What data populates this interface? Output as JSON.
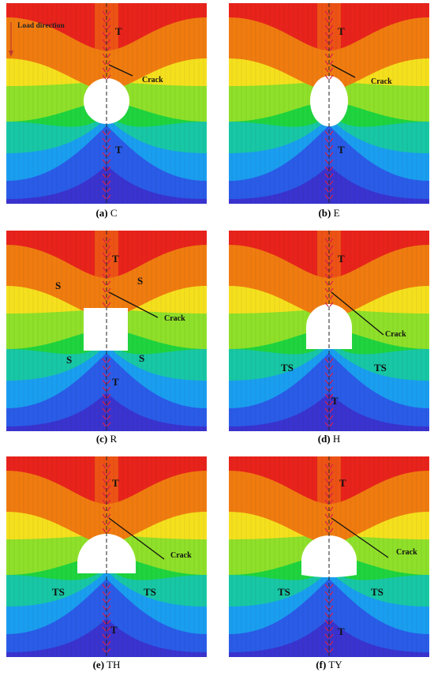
{
  "panels": [
    {
      "id": "a",
      "caption_letter": "(a)",
      "caption_name": "C",
      "opening": "circle",
      "labels": {
        "top": "T",
        "bottom": "T",
        "crack": "Crack",
        "load": "Load direction"
      }
    },
    {
      "id": "b",
      "caption_letter": "(b)",
      "caption_name": "E",
      "opening": "ellipse",
      "labels": {
        "top": "T",
        "bottom": "T",
        "crack": "Crack"
      }
    },
    {
      "id": "c",
      "caption_letter": "(c)",
      "caption_name": "R",
      "opening": "rectangle",
      "labels": {
        "top": "T",
        "bottom": "T",
        "crack": "Crack",
        "s_tl": "S",
        "s_tr": "S",
        "s_bl": "S",
        "s_br": "S"
      }
    },
    {
      "id": "d",
      "caption_letter": "(d)",
      "caption_name": "H",
      "opening": "horseshoe",
      "labels": {
        "top": "T",
        "bottom": "T",
        "crack": "Crack",
        "ts_l": "TS",
        "ts_r": "TS"
      }
    },
    {
      "id": "e",
      "caption_letter": "(e)",
      "caption_name": "TH",
      "opening": "semicircle",
      "labels": {
        "top": "T",
        "bottom": "T",
        "crack": "Crack",
        "ts_l": "TS",
        "ts_r": "TS"
      }
    },
    {
      "id": "f",
      "caption_letter": "(f)",
      "caption_name": "TY",
      "opening": "tunnel",
      "labels": {
        "top": "T",
        "bottom": "T",
        "crack": "Crack",
        "ts_l": "TS",
        "ts_r": "TS"
      }
    }
  ],
  "colors": {
    "band1": "#e8231c",
    "band2": "#f07c10",
    "band3": "#f5e01e",
    "band4": "#8fe02a",
    "band5": "#1fd43e",
    "band6": "#18c7a5",
    "band7": "#1a9ef0",
    "band8": "#2a5ce8",
    "band9": "#3a33cf",
    "crack_mark": "#d8204a"
  }
}
